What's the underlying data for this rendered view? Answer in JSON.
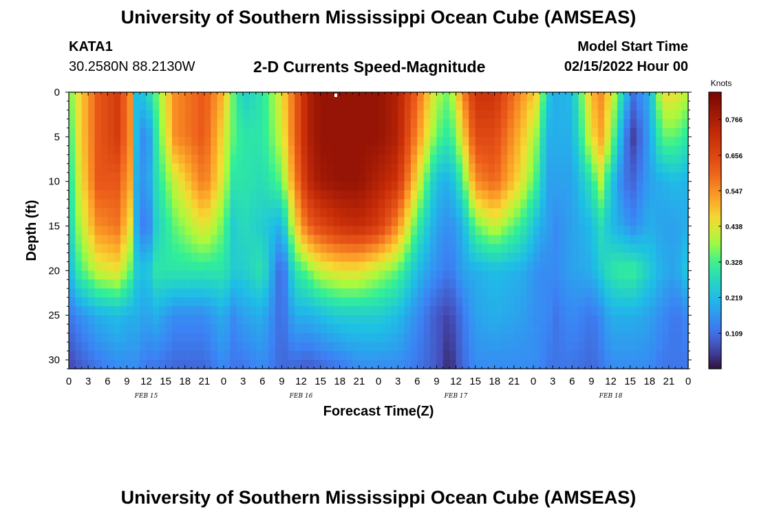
{
  "header": {
    "title": "University of Southern Mississippi Ocean Cube (AMSEAS)",
    "station": "KATA1",
    "coords": "30.2580N  88.2130W",
    "subtitle": "2-D Currents Speed-Magnitude",
    "start_label": "Model Start Time",
    "start_value": "02/15/2022 Hour 00"
  },
  "footer": {
    "title": "University of Southern Mississippi Ocean Cube (AMSEAS)"
  },
  "chart_data": {
    "type": "heatmap",
    "title": "2-D Currents Speed-Magnitude",
    "xlabel": "Forecast Time(Z)",
    "ylabel": "Depth (ft)",
    "x_range_hours": [
      0,
      96
    ],
    "y_range_ft": [
      0,
      31
    ],
    "y_inverted": true,
    "x_tick_hours": [
      0,
      3,
      6,
      9,
      12,
      15,
      18,
      21,
      24,
      27,
      30,
      33,
      36,
      39,
      42,
      45,
      48,
      51,
      54,
      57,
      60,
      63,
      66,
      69,
      72,
      75,
      78,
      81,
      84,
      87,
      90,
      93,
      96
    ],
    "x_tick_labels": [
      "0",
      "3",
      "6",
      "9",
      "12",
      "15",
      "18",
      "21",
      "0",
      "3",
      "6",
      "9",
      "12",
      "15",
      "18",
      "21",
      "0",
      "3",
      "6",
      "9",
      "12",
      "15",
      "18",
      "21",
      "0",
      "3",
      "6",
      "9",
      "12",
      "15",
      "18",
      "21",
      "0"
    ],
    "date_labels": [
      {
        "text": "FEB 15",
        "hour": 12
      },
      {
        "text": "FEB 16",
        "hour": 36
      },
      {
        "text": "FEB 17",
        "hour": 60
      },
      {
        "text": "FEB 18",
        "hour": 84
      }
    ],
    "y_ticks": [
      0,
      5,
      10,
      15,
      20,
      25,
      30
    ],
    "y_tick_labels": [
      "0",
      "5",
      "10",
      "15",
      "20",
      "25",
      "30"
    ],
    "colorbar": {
      "label": "Knots",
      "min": 0.0,
      "max": 0.85,
      "ticks": [
        0.109,
        0.219,
        0.328,
        0.438,
        0.547,
        0.656,
        0.766
      ],
      "tick_labels": [
        "0.109",
        "0.219",
        "0.328",
        "0.438",
        "0.547",
        "0.656",
        "0.766"
      ]
    },
    "depth_ft": [
      0,
      5,
      10,
      15,
      20,
      25,
      31
    ],
    "time_hours": [
      0,
      1.5,
      4.5,
      7.5,
      9.5,
      10.5,
      12,
      13.5,
      16.5,
      21,
      24,
      25.5,
      27,
      30,
      33,
      35,
      37,
      39,
      42,
      45,
      48,
      51,
      54,
      57,
      59,
      61,
      63,
      66,
      70,
      73,
      74,
      75.5,
      78,
      81,
      82.5,
      84,
      86,
      87.5,
      90,
      92,
      94,
      96
    ],
    "speed_knots_by_depth": [
      [
        0.35,
        0.45,
        0.62,
        0.68,
        0.55,
        0.22,
        0.25,
        0.35,
        0.55,
        0.62,
        0.5,
        0.35,
        0.25,
        0.3,
        0.45,
        0.6,
        0.75,
        0.8,
        0.8,
        0.8,
        0.8,
        0.75,
        0.6,
        0.4,
        0.35,
        0.55,
        0.7,
        0.7,
        0.55,
        0.45,
        0.25,
        0.2,
        0.22,
        0.5,
        0.55,
        0.45,
        0.25,
        0.12,
        0.2,
        0.45,
        0.45,
        0.4
      ],
      [
        0.3,
        0.45,
        0.62,
        0.68,
        0.55,
        0.22,
        0.12,
        0.3,
        0.55,
        0.62,
        0.45,
        0.35,
        0.3,
        0.3,
        0.42,
        0.6,
        0.75,
        0.8,
        0.8,
        0.8,
        0.8,
        0.75,
        0.55,
        0.35,
        0.3,
        0.45,
        0.65,
        0.65,
        0.5,
        0.35,
        0.2,
        0.2,
        0.2,
        0.45,
        0.52,
        0.4,
        0.15,
        0.05,
        0.18,
        0.35,
        0.35,
        0.3
      ],
      [
        0.28,
        0.42,
        0.62,
        0.62,
        0.52,
        0.2,
        0.15,
        0.28,
        0.42,
        0.58,
        0.42,
        0.3,
        0.3,
        0.28,
        0.35,
        0.55,
        0.72,
        0.78,
        0.8,
        0.8,
        0.75,
        0.7,
        0.45,
        0.22,
        0.2,
        0.32,
        0.55,
        0.6,
        0.45,
        0.3,
        0.18,
        0.18,
        0.18,
        0.3,
        0.4,
        0.25,
        0.12,
        0.1,
        0.18,
        0.2,
        0.22,
        0.2
      ],
      [
        0.25,
        0.38,
        0.55,
        0.58,
        0.45,
        0.2,
        0.1,
        0.25,
        0.35,
        0.45,
        0.35,
        0.25,
        0.28,
        0.25,
        0.2,
        0.45,
        0.6,
        0.65,
        0.7,
        0.72,
        0.68,
        0.55,
        0.32,
        0.18,
        0.15,
        0.2,
        0.35,
        0.42,
        0.32,
        0.2,
        0.18,
        0.15,
        0.18,
        0.22,
        0.28,
        0.22,
        0.18,
        0.15,
        0.2,
        0.18,
        0.18,
        0.2
      ],
      [
        0.2,
        0.32,
        0.42,
        0.45,
        0.35,
        0.25,
        0.22,
        0.3,
        0.3,
        0.3,
        0.3,
        0.25,
        0.25,
        0.3,
        0.08,
        0.3,
        0.35,
        0.42,
        0.45,
        0.45,
        0.4,
        0.35,
        0.22,
        0.15,
        0.12,
        0.18,
        0.2,
        0.22,
        0.2,
        0.15,
        0.15,
        0.15,
        0.18,
        0.2,
        0.25,
        0.3,
        0.32,
        0.32,
        0.25,
        0.2,
        0.18,
        0.25
      ],
      [
        0.12,
        0.15,
        0.2,
        0.22,
        0.2,
        0.2,
        0.18,
        0.2,
        0.15,
        0.15,
        0.2,
        0.15,
        0.18,
        0.2,
        0.1,
        0.2,
        0.2,
        0.22,
        0.25,
        0.25,
        0.25,
        0.22,
        0.15,
        0.08,
        0.05,
        0.12,
        0.18,
        0.2,
        0.18,
        0.15,
        0.15,
        0.12,
        0.15,
        0.12,
        0.15,
        0.2,
        0.2,
        0.2,
        0.18,
        0.15,
        0.12,
        0.15
      ],
      [
        0.05,
        0.08,
        0.12,
        0.15,
        0.15,
        0.15,
        0.12,
        0.12,
        0.1,
        0.1,
        0.15,
        0.12,
        0.12,
        0.15,
        0.1,
        0.1,
        0.08,
        0.1,
        0.12,
        0.15,
        0.15,
        0.15,
        0.12,
        0.08,
        0.02,
        0.1,
        0.15,
        0.15,
        0.15,
        0.15,
        0.12,
        0.12,
        0.12,
        0.1,
        0.12,
        0.15,
        0.15,
        0.15,
        0.15,
        0.12,
        0.12,
        0.12
      ]
    ]
  }
}
